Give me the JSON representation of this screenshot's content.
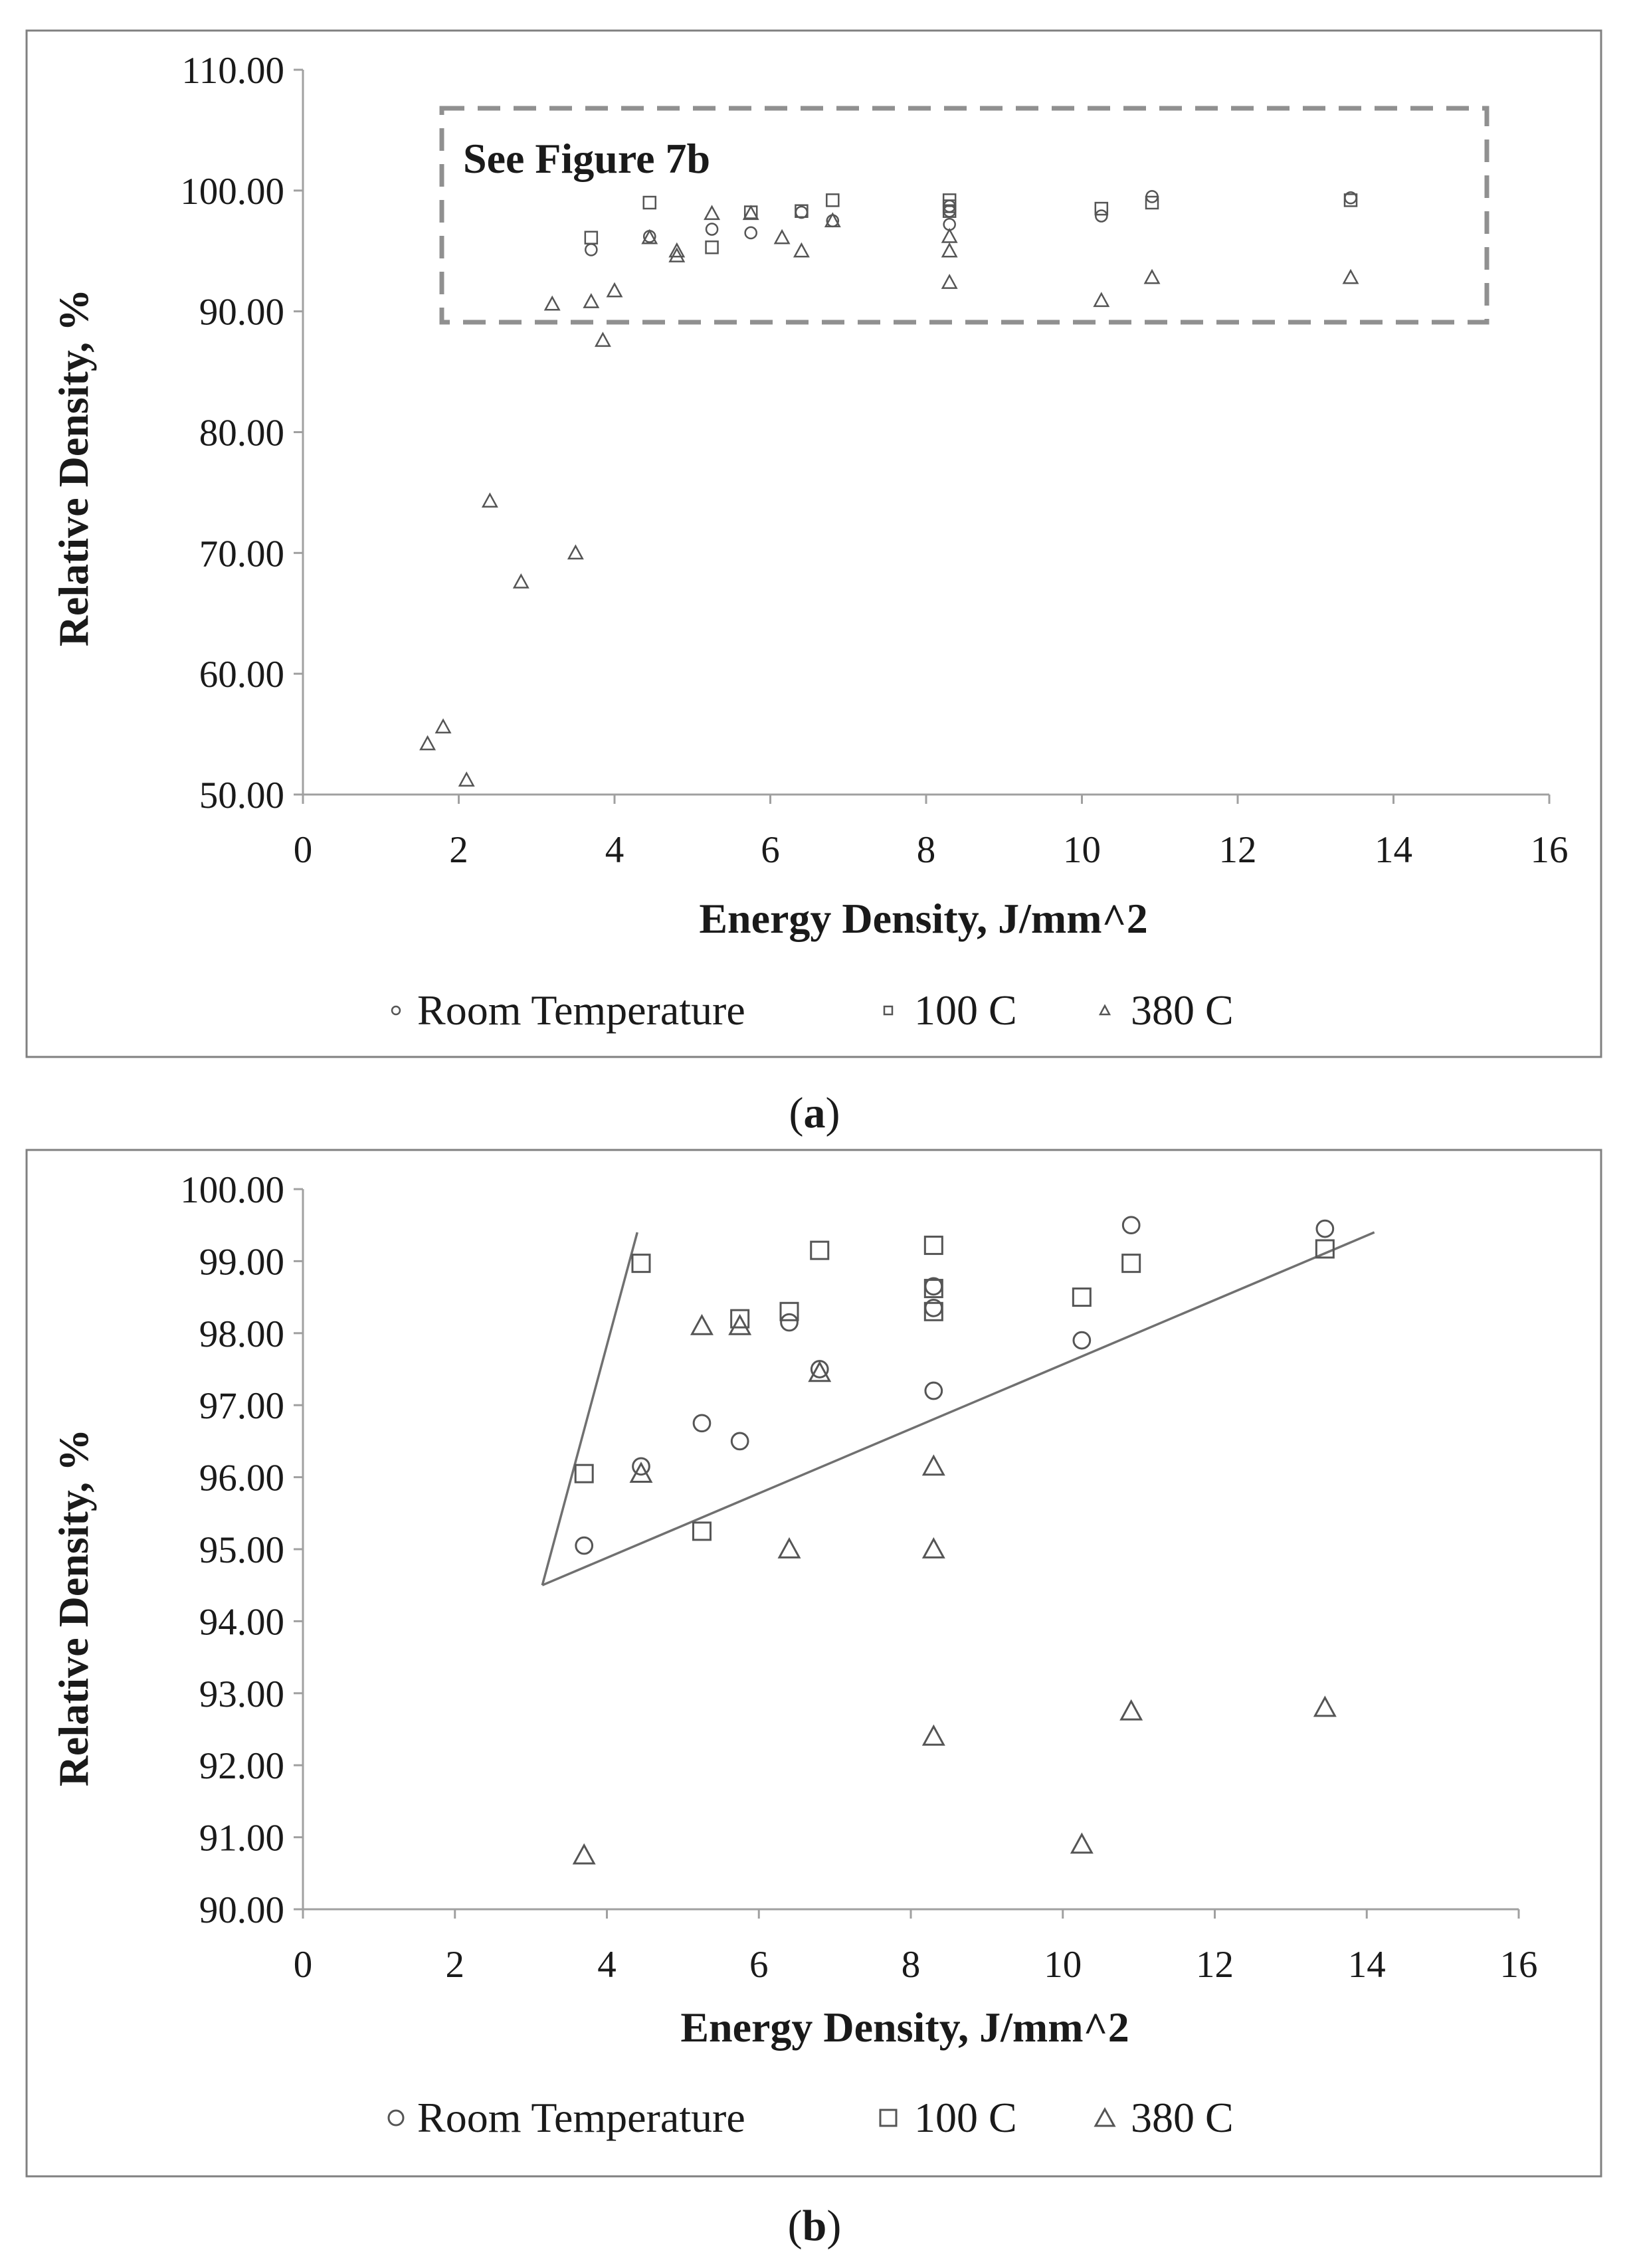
{
  "chart_data": [
    {
      "type": "scatter",
      "panel_label": "a",
      "xlabel": "Energy Density, J/mm^2",
      "ylabel": "Relative Density, %",
      "xlim": [
        0,
        16
      ],
      "ylim": [
        50,
        110
      ],
      "x_ticks": [
        "0",
        "2",
        "4",
        "6",
        "8",
        "10",
        "12",
        "14",
        "16"
      ],
      "y_ticks": [
        "50.00",
        "60.00",
        "70.00",
        "80.00",
        "90.00",
        "100.00",
        "110.00"
      ],
      "annotation": {
        "text": "See Figure 7b",
        "box_x_range": [
          1.75,
          15.2
        ],
        "box_y_range": [
          89,
          106.7
        ]
      },
      "legend_position": "bottom",
      "series": [
        {
          "name": "Room Temperature",
          "marker": "circle",
          "points": [
            [
              3.7,
              95.1
            ],
            [
              4.45,
              96.2
            ],
            [
              5.25,
              96.8
            ],
            [
              5.75,
              96.5
            ],
            [
              6.4,
              98.2
            ],
            [
              6.8,
              97.5
            ],
            [
              8.3,
              97.2
            ],
            [
              8.3,
              98.3
            ],
            [
              8.3,
              98.7
            ],
            [
              10.25,
              97.9
            ],
            [
              10.9,
              99.5
            ],
            [
              13.45,
              99.4
            ]
          ]
        },
        {
          "name": "100 C",
          "marker": "square",
          "points": [
            [
              3.7,
              96.1
            ],
            [
              4.45,
              99.0
            ],
            [
              5.25,
              95.3
            ],
            [
              5.75,
              98.2
            ],
            [
              6.4,
              98.3
            ],
            [
              6.8,
              99.2
            ],
            [
              8.3,
              98.3
            ],
            [
              8.3,
              98.7
            ],
            [
              8.3,
              99.2
            ],
            [
              10.25,
              98.5
            ],
            [
              10.9,
              99.0
            ],
            [
              13.45,
              99.2
            ]
          ]
        },
        {
          "name": "380 C",
          "marker": "triangle",
          "points": [
            [
              1.6,
              54.2
            ],
            [
              1.8,
              55.6
            ],
            [
              2.1,
              51.2
            ],
            [
              2.4,
              74.3
            ],
            [
              2.8,
              67.6
            ],
            [
              3.2,
              90.6
            ],
            [
              3.5,
              70.0
            ],
            [
              3.7,
              90.8
            ],
            [
              3.85,
              87.6
            ],
            [
              4.0,
              91.7
            ],
            [
              4.45,
              96.1
            ],
            [
              4.8,
              94.6
            ],
            [
              4.8,
              95.0
            ],
            [
              5.25,
              98.1
            ],
            [
              5.75,
              98.1
            ],
            [
              6.15,
              96.1
            ],
            [
              6.4,
              95.0
            ],
            [
              6.8,
              97.5
            ],
            [
              8.3,
              92.4
            ],
            [
              8.3,
              95.0
            ],
            [
              8.3,
              96.2
            ],
            [
              10.25,
              90.9
            ],
            [
              10.9,
              92.8
            ],
            [
              13.45,
              92.8
            ]
          ]
        }
      ]
    },
    {
      "type": "scatter",
      "panel_label": "b",
      "xlabel": "Energy Density, J/mm^2",
      "ylabel": "Relative Density, %",
      "xlim": [
        0,
        16
      ],
      "ylim": [
        90,
        100
      ],
      "x_ticks": [
        "0",
        "2",
        "4",
        "6",
        "8",
        "10",
        "12",
        "14",
        "16"
      ],
      "y_ticks": [
        "90.00",
        "91.00",
        "92.00",
        "93.00",
        "94.00",
        "95.00",
        "96.00",
        "97.00",
        "98.00",
        "99.00",
        "100.00"
      ],
      "legend_position": "bottom",
      "guide_lines": [
        {
          "from": [
            3.15,
            94.5
          ],
          "to": [
            4.4,
            99.4
          ]
        },
        {
          "from": [
            3.15,
            94.5
          ],
          "to": [
            14.1,
            99.4
          ]
        }
      ],
      "series": [
        {
          "name": "Room Temperature",
          "marker": "circle",
          "points": [
            [
              3.7,
              95.05
            ],
            [
              4.45,
              96.15
            ],
            [
              5.25,
              96.75
            ],
            [
              5.75,
              96.5
            ],
            [
              6.4,
              98.15
            ],
            [
              6.8,
              97.5
            ],
            [
              8.3,
              97.2
            ],
            [
              8.3,
              98.35
            ],
            [
              8.3,
              98.65
            ],
            [
              10.25,
              97.9
            ],
            [
              10.9,
              99.5
            ],
            [
              13.45,
              99.45
            ]
          ]
        },
        {
          "name": "100 C",
          "marker": "square",
          "points": [
            [
              3.7,
              96.05
            ],
            [
              4.45,
              98.97
            ],
            [
              5.25,
              95.25
            ],
            [
              5.75,
              98.2
            ],
            [
              6.4,
              98.3
            ],
            [
              6.8,
              99.15
            ],
            [
              8.3,
              98.3
            ],
            [
              8.3,
              98.62
            ],
            [
              8.3,
              99.22
            ],
            [
              10.25,
              98.5
            ],
            [
              10.9,
              98.97
            ],
            [
              13.45,
              99.17
            ]
          ]
        },
        {
          "name": "380 C",
          "marker": "triangle",
          "points": [
            [
              3.7,
              90.75
            ],
            [
              4.45,
              96.05
            ],
            [
              5.25,
              98.1
            ],
            [
              5.75,
              98.1
            ],
            [
              6.4,
              95.0
            ],
            [
              6.8,
              97.45
            ],
            [
              8.3,
              92.4
            ],
            [
              8.3,
              95.0
            ],
            [
              8.3,
              96.15
            ],
            [
              10.25,
              90.9
            ],
            [
              10.9,
              92.75
            ],
            [
              13.45,
              92.8
            ]
          ]
        }
      ]
    }
  ]
}
